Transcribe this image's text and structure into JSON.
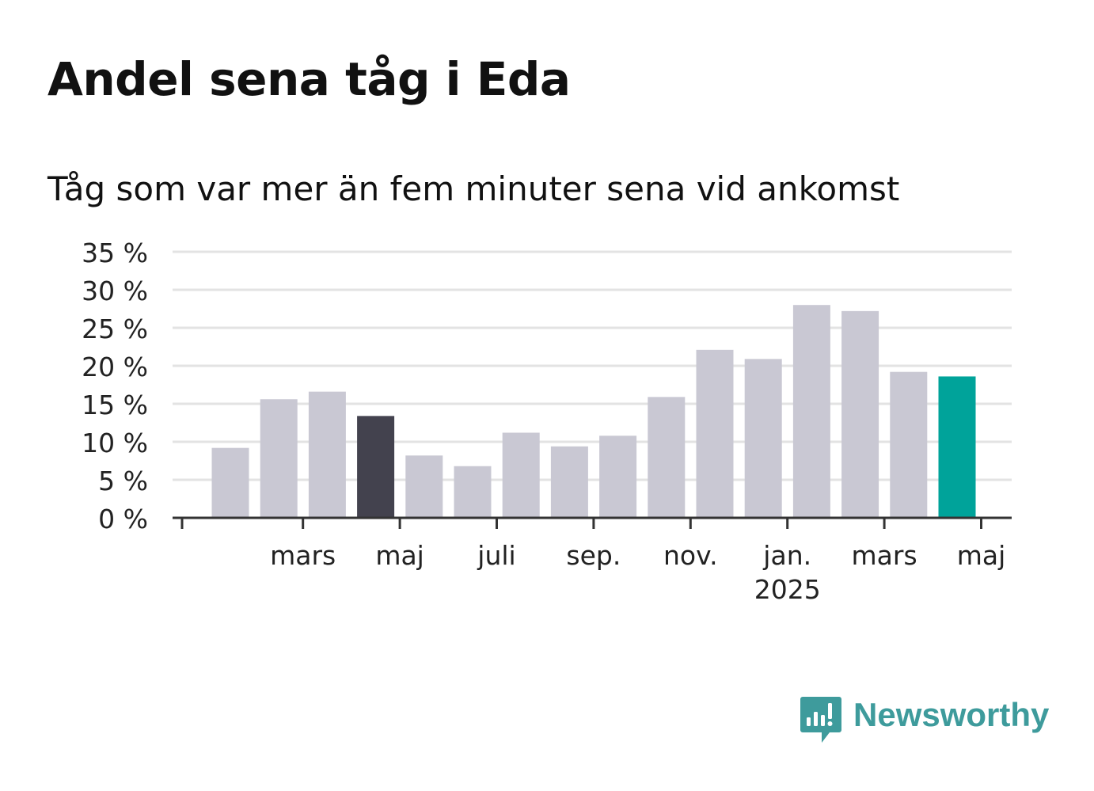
{
  "header": {
    "title": "Andel sena tåg i Eda",
    "subtitle": "Tåg som var mer än fem minuter sena vid ankomst"
  },
  "brand": {
    "name": "Newsworthy",
    "icon": "newsworthy-logo-icon",
    "color": "#3e9b9c"
  },
  "colors": {
    "bar_default": "#c9c8d3",
    "bar_highlight_dark": "#43424e",
    "bar_highlight_current": "#00a39a",
    "grid": "#e3e3e3",
    "axis": "#333333",
    "text": "#111111"
  },
  "chart_data": {
    "type": "bar",
    "title": "Andel sena tåg i Eda",
    "subtitle": "Tåg som var mer än fem minuter sena vid ankomst",
    "ylabel": "",
    "xlabel": "",
    "unit": "%",
    "ylim": [
      0,
      35
    ],
    "yticks": [
      0,
      5,
      10,
      15,
      20,
      25,
      30,
      35
    ],
    "ytick_labels": [
      "0 %",
      "5 %",
      "10 %",
      "15 %",
      "20 %",
      "25 %",
      "30 %",
      "35 %"
    ],
    "grid": true,
    "legend": "none",
    "x": [
      "2024-02",
      "2024-03",
      "2024-04",
      "2024-05",
      "2024-06",
      "2024-07",
      "2024-08",
      "2024-09",
      "2024-10",
      "2024-11",
      "2024-12",
      "2025-01",
      "2025-02",
      "2025-03",
      "2025-04",
      "2025-05"
    ],
    "values": [
      9.2,
      15.6,
      16.6,
      13.4,
      8.2,
      6.8,
      11.2,
      9.4,
      10.8,
      15.9,
      22.1,
      20.9,
      28.0,
      27.2,
      19.2,
      18.6
    ],
    "highlight": {
      "2024-05": "bar_highlight_dark",
      "2025-05": "bar_highlight_current"
    },
    "xtick_labels": [
      {
        "x": "2024-03",
        "label": "mars"
      },
      {
        "x": "2024-05",
        "label": "maj"
      },
      {
        "x": "2024-07",
        "label": "juli"
      },
      {
        "x": "2024-09",
        "label": "sep."
      },
      {
        "x": "2024-11",
        "label": "nov."
      },
      {
        "x": "2025-01",
        "label": "jan.",
        "sublabel": "2025"
      },
      {
        "x": "2025-03",
        "label": "mars"
      },
      {
        "x": "2025-05",
        "label": "maj"
      }
    ]
  }
}
